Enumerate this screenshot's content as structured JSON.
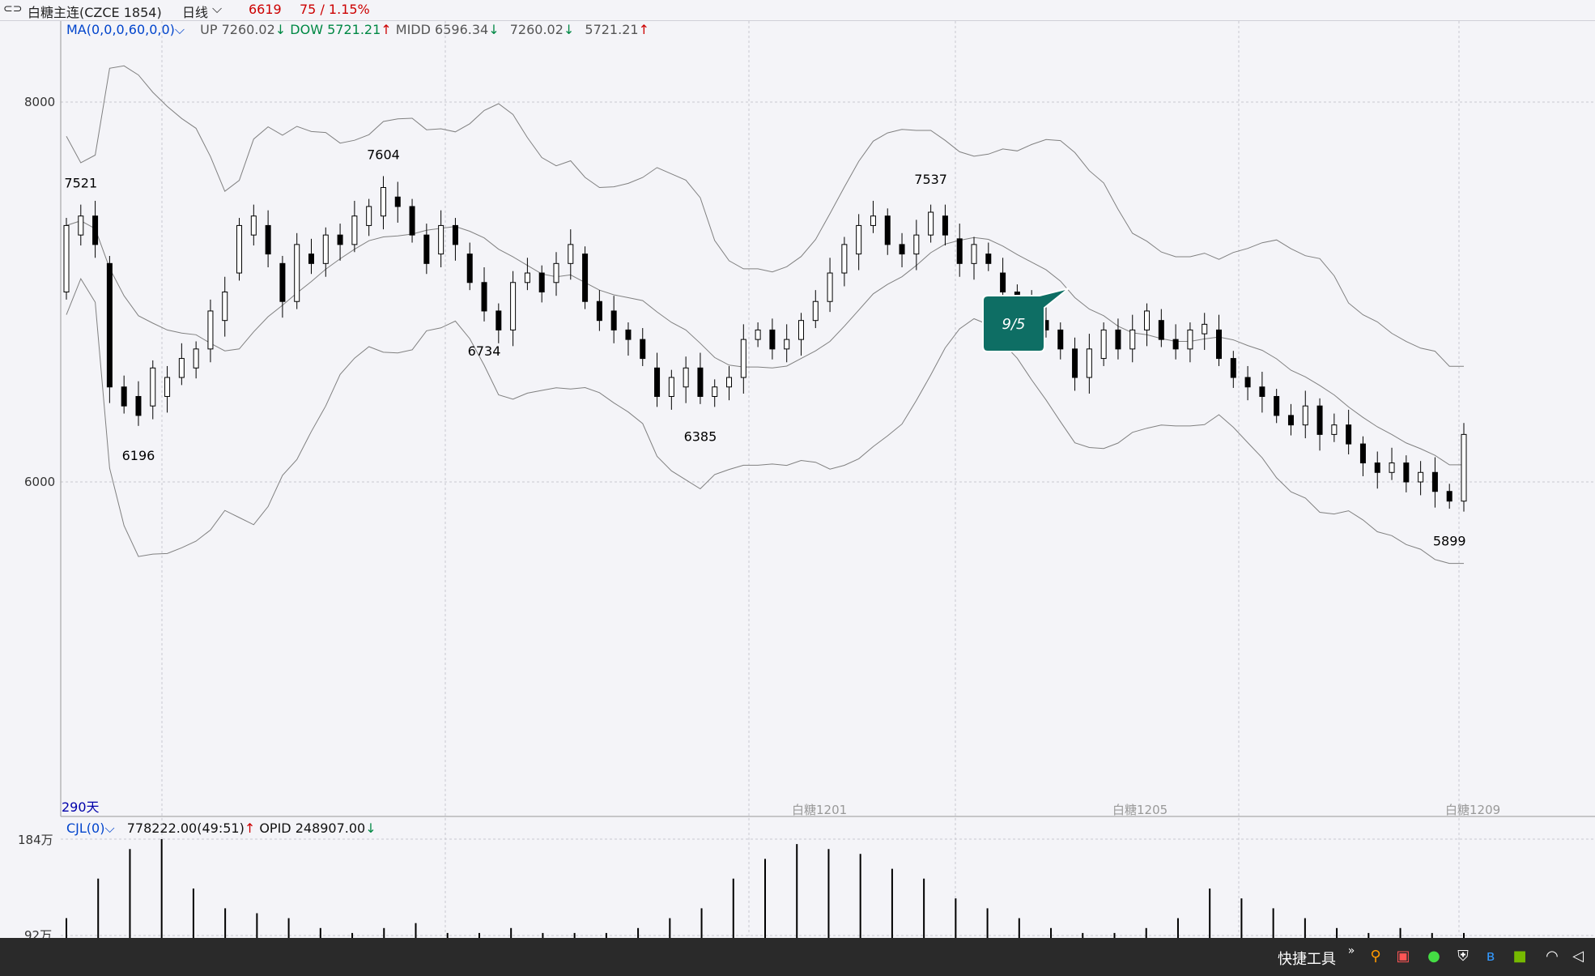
{
  "header": {
    "title": "白糖主连(CZCE 1854)",
    "period": "日线",
    "price": "6619",
    "change": "75 / 1.15%"
  },
  "main_indicator": {
    "name": "MA(0,0,0,60,0,0)",
    "up_label": "UP",
    "up_value": "7260.02",
    "dow_label": "DOW",
    "dow_value": "5721.21",
    "midd_label": "MIDD",
    "midd_value": "6596.34",
    "val4": "7260.02",
    "val5": "5721.21"
  },
  "sub_indicator": {
    "name": "CJL(0)",
    "vol_value": "778222.00(49:51)",
    "opid_label": "OPID",
    "opid_value": "248907.00"
  },
  "annotation": {
    "label": "9/5"
  },
  "days_label": "290天",
  "taskbar": {
    "tool_label": "快捷工具"
  },
  "icons": [
    "link-icon",
    "dropdown-chevron-icon",
    "search-icon",
    "wechat-icon",
    "shield-icon",
    "bluetooth-icon",
    "nvidia-icon",
    "wifi-icon",
    "volume-icon"
  ],
  "colors": {
    "up": "#cc0000",
    "down": "#008844",
    "ma": "#0044cc",
    "annotation": "#0e6e64",
    "candle": "#000000",
    "band": "#808080"
  },
  "chart_data": {
    "type": "candlestick",
    "price_axis": {
      "ticks": [
        8000,
        6000
      ]
    },
    "volume_axis": {
      "ticks": [
        "184万",
        "92万"
      ]
    },
    "contract_labels": [
      "白糖1201",
      "白糖1205",
      "白糖1209"
    ],
    "peak_labels": [
      {
        "label": "7521",
        "kind": "high"
      },
      {
        "label": "6196",
        "kind": "low"
      },
      {
        "label": "7604",
        "kind": "high"
      },
      {
        "label": "6734",
        "kind": "low"
      },
      {
        "label": "6385",
        "kind": "low"
      },
      {
        "label": "7537",
        "kind": "high"
      },
      {
        "label": "5899",
        "kind": "low"
      }
    ],
    "price_series": [
      [
        7000,
        7350
      ],
      [
        7300,
        7400
      ],
      [
        7400,
        7250
      ],
      [
        7150,
        6500
      ],
      [
        6500,
        6400
      ],
      [
        6450,
        6350
      ],
      [
        6400,
        6600
      ],
      [
        6450,
        6550
      ],
      [
        6550,
        6650
      ],
      [
        6600,
        6700
      ],
      [
        6700,
        6900
      ],
      [
        6850,
        7000
      ],
      [
        7100,
        7350
      ],
      [
        7300,
        7400
      ],
      [
        7350,
        7200
      ],
      [
        7150,
        6950
      ],
      [
        6950,
        7250
      ],
      [
        7200,
        7150
      ],
      [
        7150,
        7300
      ],
      [
        7300,
        7250
      ],
      [
        7250,
        7400
      ],
      [
        7350,
        7450
      ],
      [
        7400,
        7550
      ],
      [
        7500,
        7450
      ],
      [
        7450,
        7300
      ],
      [
        7300,
        7150
      ],
      [
        7200,
        7350
      ],
      [
        7350,
        7250
      ],
      [
        7200,
        7050
      ],
      [
        7050,
        6900
      ],
      [
        6900,
        6800
      ],
      [
        6800,
        7050
      ],
      [
        7050,
        7100
      ],
      [
        7100,
        7000
      ],
      [
        7050,
        7150
      ],
      [
        7150,
        7250
      ],
      [
        7200,
        6950
      ],
      [
        6950,
        6850
      ],
      [
        6900,
        6800
      ],
      [
        6800,
        6750
      ],
      [
        6750,
        6650
      ],
      [
        6600,
        6450
      ],
      [
        6450,
        6550
      ],
      [
        6500,
        6600
      ],
      [
        6600,
        6450
      ],
      [
        6450,
        6500
      ],
      [
        6500,
        6550
      ],
      [
        6550,
        6750
      ],
      [
        6750,
        6800
      ],
      [
        6800,
        6700
      ],
      [
        6700,
        6750
      ],
      [
        6750,
        6850
      ],
      [
        6850,
        6950
      ],
      [
        6950,
        7100
      ],
      [
        7100,
        7250
      ],
      [
        7200,
        7350
      ],
      [
        7350,
        7400
      ],
      [
        7400,
        7250
      ],
      [
        7250,
        7200
      ],
      [
        7200,
        7300
      ],
      [
        7300,
        7420
      ],
      [
        7400,
        7300
      ],
      [
        7280,
        7150
      ],
      [
        7150,
        7250
      ],
      [
        7200,
        7150
      ],
      [
        7100,
        7000
      ],
      [
        7000,
        6950
      ],
      [
        6950,
        6850
      ],
      [
        6850,
        6800
      ],
      [
        6800,
        6700
      ],
      [
        6700,
        6550
      ],
      [
        6550,
        6700
      ],
      [
        6650,
        6800
      ],
      [
        6800,
        6700
      ],
      [
        6700,
        6800
      ],
      [
        6800,
        6900
      ],
      [
        6850,
        6750
      ],
      [
        6750,
        6700
      ],
      [
        6700,
        6800
      ],
      [
        6780,
        6830
      ],
      [
        6800,
        6650
      ],
      [
        6650,
        6550
      ],
      [
        6550,
        6500
      ],
      [
        6500,
        6450
      ],
      [
        6450,
        6350
      ],
      [
        6350,
        6300
      ],
      [
        6300,
        6400
      ],
      [
        6400,
        6250
      ],
      [
        6250,
        6300
      ],
      [
        6300,
        6200
      ],
      [
        6200,
        6100
      ],
      [
        6100,
        6050
      ],
      [
        6050,
        6100
      ],
      [
        6100,
        6000
      ],
      [
        6000,
        6050
      ],
      [
        6050,
        5950
      ],
      [
        5950,
        5899
      ],
      [
        5899,
        6250
      ]
    ],
    "bollinger": {
      "period": 60,
      "upper": "7260.02",
      "lower": "5721.21",
      "mid": "6596.34"
    },
    "volume_series": [
      0.2,
      0.6,
      0.9,
      1.0,
      0.5,
      0.3,
      0.25,
      0.2,
      0.1,
      0.05,
      0.1,
      0.15,
      0.05,
      0.05,
      0.1,
      0.05,
      0.05,
      0.05,
      0.1,
      0.2,
      0.3,
      0.6,
      0.8,
      0.95,
      0.9,
      0.85,
      0.7,
      0.6,
      0.4,
      0.3,
      0.2,
      0.1,
      0.05,
      0.05,
      0.1,
      0.2,
      0.5,
      0.4,
      0.3,
      0.2,
      0.1,
      0.05,
      0.1,
      0.05,
      0.05
    ]
  }
}
